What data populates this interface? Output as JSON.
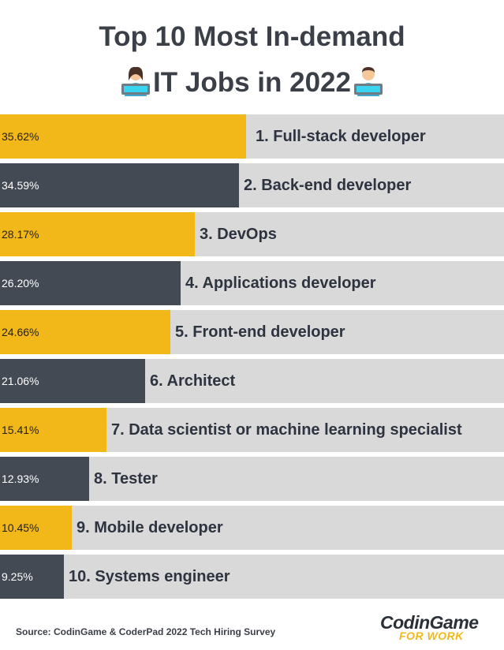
{
  "title_line1": "Top 10 Most In-demand",
  "title_line2": "IT Jobs in 2022",
  "source": "Source: CodinGame & CoderPad 2022 Tech Hiring Survey",
  "logo": {
    "main": "CodinGame",
    "sub": "FOR WORK"
  },
  "colors": {
    "yellow": "#f2b81a",
    "dark": "#434a54",
    "track": "#d9d9d9"
  },
  "chart_data": {
    "type": "bar",
    "orientation": "horizontal",
    "title": "Top 10 Most In-demand IT Jobs in 2022",
    "xlim": [
      0,
      73
    ],
    "categories": [
      "1. Full-stack developer",
      "2. Back-end developer",
      "3. DevOps",
      "4. Applications developer",
      "5. Front-end developer",
      "6. Architect",
      "7. Data scientist or machine learning specialist",
      "8. Tester",
      "9. Mobile developer",
      "10. Systems engineer"
    ],
    "values": [
      35.62,
      34.59,
      28.17,
      26.2,
      24.66,
      21.06,
      15.41,
      12.93,
      10.45,
      9.25
    ],
    "value_labels": [
      "35.62%",
      "34.59%",
      "28.17%",
      "26.20%",
      "24.66%",
      "21.06%",
      "15.41%",
      "12.93%",
      "10.45%",
      "9.25%"
    ],
    "bar_colors": [
      "yellow",
      "dark",
      "yellow",
      "dark",
      "yellow",
      "dark",
      "yellow",
      "dark",
      "yellow",
      "dark"
    ]
  }
}
